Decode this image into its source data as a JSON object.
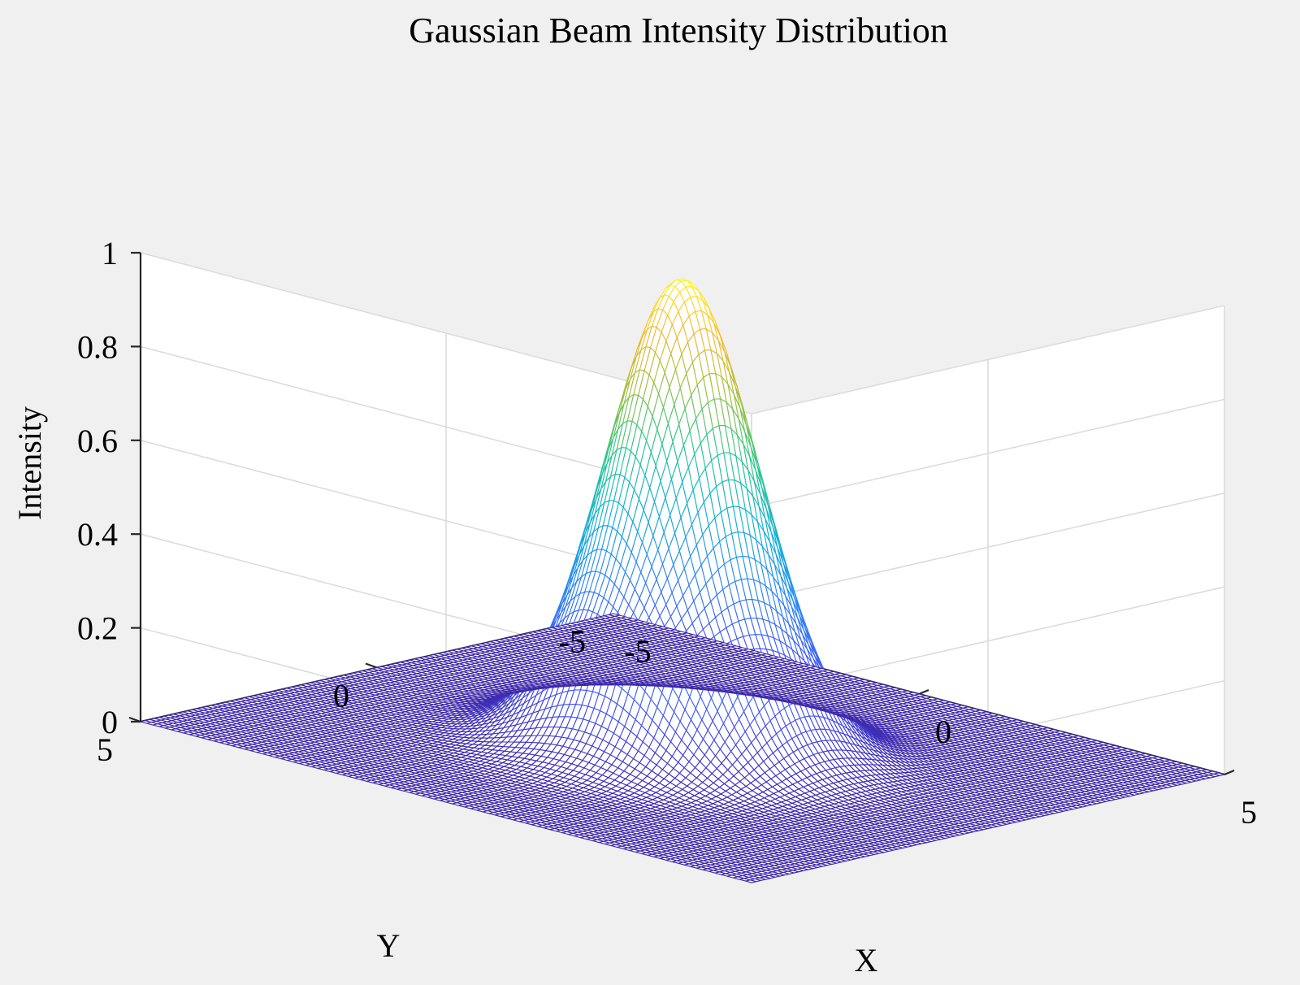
{
  "chart_data": {
    "type": "surface",
    "title": "Gaussian Beam Intensity Distribution",
    "xlabel": "X",
    "ylabel": "Y",
    "zlabel": "Intensity",
    "xlim": [
      -5,
      5
    ],
    "ylim": [
      -5,
      5
    ],
    "zlim": [
      0,
      1
    ],
    "xticks": [
      "-5",
      "0",
      "5"
    ],
    "yticks": [
      "-5",
      "0",
      "5"
    ],
    "zticks": [
      "0",
      "0.2",
      "0.4",
      "0.6",
      "0.8",
      "1"
    ],
    "function": "exp(-(x^2 + y^2) / 2)",
    "peak": {
      "x": 0,
      "y": 0,
      "z": 1
    },
    "mesh_points_per_axis": 101,
    "colormap": "parula",
    "grid": true,
    "view": "3d-isometric"
  },
  "colors": {
    "background": "#f0f0f0",
    "axes_panel": "#ffffff",
    "grid": "#dcdcdc",
    "axis_line": "#262626",
    "colormap_low": "#3e26a8",
    "colormap_high": "#f9fb0e"
  }
}
